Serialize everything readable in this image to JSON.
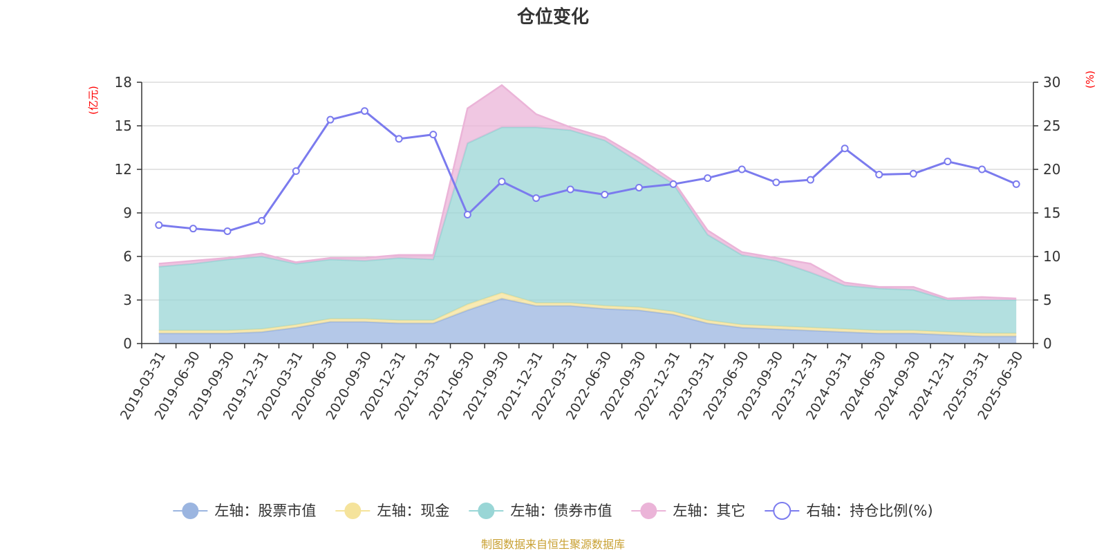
{
  "chart_data": {
    "type": "area",
    "title": "仓位变化",
    "left_unit": "(亿元)",
    "right_unit": "(%)",
    "source": "制图数据来自恒生聚源数据库",
    "categories": [
      "2019-03-31",
      "2019-06-30",
      "2019-09-30",
      "2019-12-31",
      "2020-03-31",
      "2020-06-30",
      "2020-09-30",
      "2020-12-31",
      "2021-03-31",
      "2021-06-30",
      "2021-09-30",
      "2021-12-31",
      "2022-03-31",
      "2022-06-30",
      "2022-09-30",
      "2022-12-31",
      "2023-03-31",
      "2023-06-30",
      "2023-09-30",
      "2023-12-31",
      "2024-03-31",
      "2024-06-30",
      "2024-09-30",
      "2024-12-31",
      "2025-03-31",
      "2025-06-30"
    ],
    "left_axis": {
      "min": 0,
      "max": 18,
      "ticks": [
        0,
        3,
        6,
        9,
        12,
        15,
        18
      ]
    },
    "right_axis": {
      "min": 0,
      "max": 30,
      "ticks": [
        0,
        5,
        10,
        15,
        20,
        25,
        30
      ]
    },
    "grid": true,
    "legend_position": "bottom",
    "stacked_series": [
      {
        "name": "左轴：股票市值",
        "color": "#9bb5e0",
        "values": [
          0.7,
          0.7,
          0.7,
          0.8,
          1.1,
          1.5,
          1.5,
          1.4,
          1.4,
          2.3,
          3.1,
          2.6,
          2.6,
          2.4,
          2.3,
          2.0,
          1.4,
          1.1,
          1.0,
          0.9,
          0.8,
          0.7,
          0.7,
          0.6,
          0.5,
          0.5
        ]
      },
      {
        "name": "左轴：现金",
        "color": "#f5e39b",
        "values": [
          0.2,
          0.2,
          0.2,
          0.2,
          0.2,
          0.2,
          0.2,
          0.2,
          0.2,
          0.4,
          0.4,
          0.2,
          0.2,
          0.2,
          0.2,
          0.2,
          0.2,
          0.2,
          0.2,
          0.2,
          0.2,
          0.2,
          0.2,
          0.2,
          0.2,
          0.2
        ]
      },
      {
        "name": "左轴：债券市值",
        "color": "#99d6d6",
        "values": [
          4.4,
          4.6,
          4.9,
          5.0,
          4.2,
          4.1,
          4.0,
          4.3,
          4.2,
          11.1,
          11.4,
          12.1,
          11.9,
          11.4,
          10.0,
          8.8,
          5.9,
          4.8,
          4.5,
          3.8,
          3.0,
          2.9,
          2.8,
          2.2,
          2.3,
          2.3
        ]
      },
      {
        "name": "左轴：其它",
        "color": "#ebb4d8",
        "values": [
          0.2,
          0.2,
          0.1,
          0.2,
          0.1,
          0.1,
          0.2,
          0.2,
          0.3,
          2.4,
          2.9,
          0.9,
          0.2,
          0.2,
          0.3,
          0.2,
          0.3,
          0.2,
          0.2,
          0.6,
          0.2,
          0.1,
          0.2,
          0.1,
          0.2,
          0.1
        ]
      }
    ],
    "line_series": {
      "name": "右轴：持仓比例(%)",
      "color": "#7b7bee",
      "values": [
        13.6,
        13.2,
        12.9,
        14.1,
        19.8,
        25.7,
        26.7,
        23.5,
        24.0,
        14.8,
        18.6,
        16.7,
        17.7,
        17.1,
        17.9,
        18.3,
        19.0,
        20.0,
        18.5,
        18.8,
        22.4,
        19.4,
        19.5,
        20.9,
        20.0,
        18.3
      ]
    }
  }
}
